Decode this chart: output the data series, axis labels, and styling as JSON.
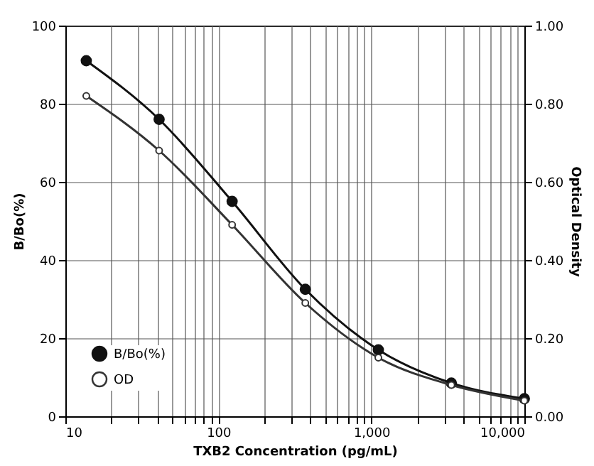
{
  "chart_data": {
    "type": "line",
    "xlabel": "TXB2 Concentration (pg/mL)",
    "ylabel": "B/Bo(%)",
    "y2label": "Optical Density",
    "x": [
      13.7,
      41,
      123,
      370,
      1111,
      3333,
      10000
    ],
    "series": [
      {
        "name": "B/Bo(%)",
        "color": "#111111",
        "values": [
          91,
          76,
          55,
          32.5,
          17,
          8.5,
          4.5
        ]
      },
      {
        "name": "OD",
        "color": "#333333",
        "axis": "y2",
        "values": [
          0.82,
          0.68,
          0.49,
          0.29,
          0.15,
          0.08,
          0.04
        ]
      }
    ],
    "log": "x",
    "xlim": [
      10,
      10000
    ],
    "xticks": [
      10,
      {
        "value": 20,
        "label": null
      },
      {
        "value": 30,
        "label": null
      },
      {
        "value": 40,
        "label": null
      },
      {
        "value": 50,
        "label": null
      },
      {
        "value": 60,
        "label": null
      },
      {
        "value": 70,
        "label": null
      },
      {
        "value": 80,
        "label": null
      },
      {
        "value": 90,
        "label": null
      },
      100,
      {
        "value": 200,
        "label": null
      },
      {
        "value": 300,
        "label": null
      },
      {
        "value": 400,
        "label": null
      },
      {
        "value": 500,
        "label": null
      },
      {
        "value": 600,
        "label": null
      },
      {
        "value": 700,
        "label": null
      },
      {
        "value": 800,
        "label": null
      },
      {
        "value": 900,
        "label": null
      },
      {
        "value": 1000,
        "label": "1,000"
      },
      {
        "value": 2000,
        "label": null
      },
      {
        "value": 3000,
        "label": null
      },
      {
        "value": 4000,
        "label": null
      },
      {
        "value": 5000,
        "label": null
      },
      {
        "value": 6000,
        "label": null
      },
      {
        "value": 7000,
        "label": null
      },
      {
        "value": 8000,
        "label": null
      },
      {
        "value": 9000,
        "label": null
      },
      {
        "value": 10000,
        "label": "10,000"
      }
    ],
    "ylim": [
      0,
      100
    ],
    "yticks": [
      0,
      20,
      40,
      60,
      80,
      100
    ],
    "y2lim": [
      0,
      1
    ],
    "y2ticks": [
      {
        "value": 0,
        "label": "0.00"
      },
      {
        "value": 0.2,
        "label": "0.20"
      },
      {
        "value": 0.4,
        "label": "0.40"
      },
      {
        "value": 0.6,
        "label": "0.60"
      },
      {
        "value": 0.8,
        "label": "0.80"
      },
      {
        "value": 1,
        "label": "1.00"
      }
    ],
    "grid": true,
    "legend": "bottom left",
    "marker": "circle",
    "line_style": "solid"
  }
}
